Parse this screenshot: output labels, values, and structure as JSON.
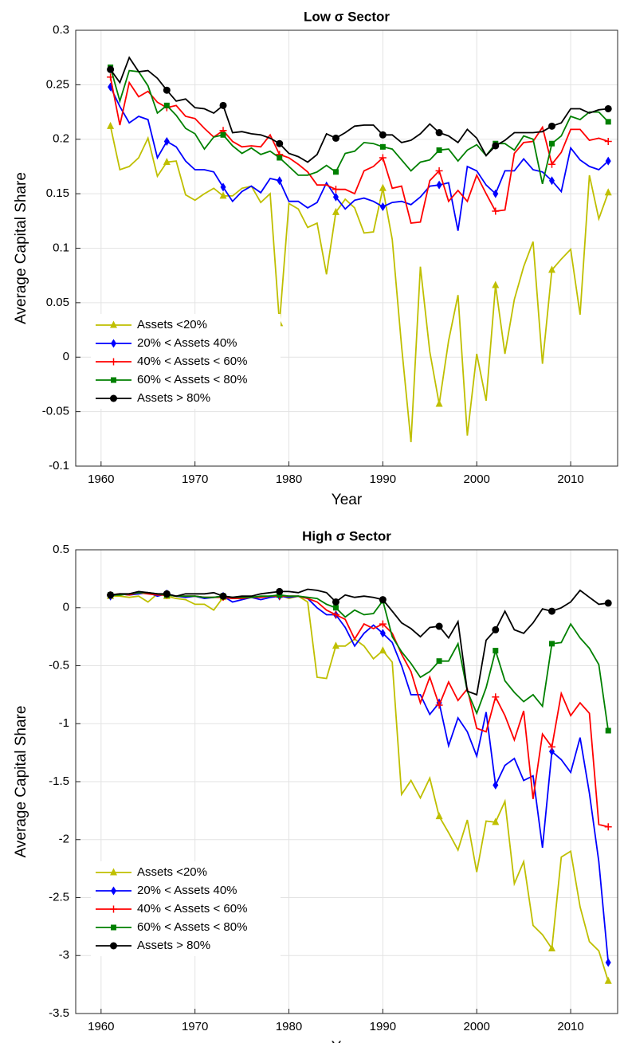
{
  "chart_data": [
    {
      "type": "line",
      "title": "Low σ Sector",
      "xlabel": "Year",
      "ylabel": "Average Capital Share",
      "x": [
        1961,
        1962,
        1963,
        1964,
        1965,
        1966,
        1967,
        1968,
        1969,
        1970,
        1971,
        1972,
        1973,
        1974,
        1975,
        1976,
        1977,
        1978,
        1979,
        1980,
        1981,
        1982,
        1983,
        1984,
        1985,
        1986,
        1987,
        1988,
        1989,
        1990,
        1991,
        1992,
        1993,
        1994,
        1995,
        1996,
        1997,
        1998,
        1999,
        2000,
        2001,
        2002,
        2003,
        2004,
        2005,
        2006,
        2007,
        2008,
        2009,
        2010,
        2011,
        2012,
        2013,
        2014
      ],
      "xlim": [
        1957.3,
        2015
      ],
      "xticks": [
        1960,
        1970,
        1980,
        1990,
        2000,
        2010
      ],
      "ylim": [
        -0.1,
        0.3
      ],
      "yticks": [
        -0.1,
        -0.05,
        0,
        0.05,
        0.1,
        0.15,
        0.2,
        0.25,
        0.3
      ],
      "grid": true,
      "legend": "lower left",
      "series": [
        {
          "name": "Assets <20%",
          "color": "#bfbf00",
          "marker": "triangle",
          "values": [
            0.212,
            0.172,
            0.175,
            0.183,
            0.201,
            0.166,
            0.179,
            0.18,
            0.149,
            0.144,
            0.15,
            0.155,
            0.148,
            0.148,
            0.155,
            0.157,
            0.142,
            0.15,
            0.031,
            0.141,
            0.136,
            0.119,
            0.123,
            0.076,
            0.133,
            0.145,
            0.137,
            0.114,
            0.115,
            0.155,
            0.108,
            0.01,
            -0.078,
            0.083,
            0.005,
            -0.043,
            0.015,
            0.057,
            -0.072,
            0.003,
            -0.04,
            0.066,
            0.003,
            0.053,
            0.083,
            0.106,
            -0.006,
            0.08,
            0.09,
            0.099,
            0.039,
            0.167,
            0.127,
            0.151
          ]
        },
        {
          "name": "20% < Assets 40%",
          "color": "#0000ff",
          "marker": "diamond",
          "values": [
            0.248,
            0.23,
            0.215,
            0.221,
            0.218,
            0.183,
            0.198,
            0.193,
            0.18,
            0.172,
            0.172,
            0.17,
            0.156,
            0.143,
            0.152,
            0.157,
            0.151,
            0.164,
            0.162,
            0.143,
            0.143,
            0.137,
            0.142,
            0.16,
            0.147,
            0.136,
            0.144,
            0.146,
            0.143,
            0.138,
            0.142,
            0.143,
            0.14,
            0.147,
            0.157,
            0.158,
            0.16,
            0.116,
            0.175,
            0.171,
            0.158,
            0.15,
            0.171,
            0.171,
            0.182,
            0.172,
            0.17,
            0.162,
            0.152,
            0.192,
            0.181,
            0.175,
            0.172,
            0.18
          ]
        },
        {
          "name": "40% < Assets < 60%",
          "color": "#ff0000",
          "marker": "plus",
          "values": [
            0.257,
            0.213,
            0.252,
            0.239,
            0.244,
            0.234,
            0.229,
            0.231,
            0.221,
            0.219,
            0.21,
            0.202,
            0.208,
            0.198,
            0.193,
            0.194,
            0.193,
            0.204,
            0.186,
            0.183,
            0.177,
            0.17,
            0.158,
            0.158,
            0.154,
            0.154,
            0.15,
            0.171,
            0.175,
            0.183,
            0.155,
            0.157,
            0.123,
            0.124,
            0.162,
            0.171,
            0.143,
            0.153,
            0.143,
            0.167,
            0.15,
            0.134,
            0.135,
            0.187,
            0.197,
            0.198,
            0.211,
            0.177,
            0.188,
            0.209,
            0.209,
            0.199,
            0.201,
            0.198
          ]
        },
        {
          "name": "60% < Assets < 80%",
          "color": "#008000",
          "marker": "square",
          "values": [
            0.266,
            0.235,
            0.263,
            0.262,
            0.249,
            0.224,
            0.231,
            0.222,
            0.21,
            0.205,
            0.191,
            0.202,
            0.204,
            0.194,
            0.187,
            0.192,
            0.186,
            0.189,
            0.183,
            0.175,
            0.167,
            0.167,
            0.17,
            0.176,
            0.17,
            0.187,
            0.189,
            0.197,
            0.196,
            0.193,
            0.191,
            0.181,
            0.171,
            0.179,
            0.181,
            0.19,
            0.191,
            0.18,
            0.19,
            0.195,
            0.185,
            0.196,
            0.196,
            0.19,
            0.203,
            0.2,
            0.159,
            0.196,
            0.203,
            0.221,
            0.218,
            0.225,
            0.225,
            0.216
          ]
        },
        {
          "name": "Assets > 80%",
          "color": "#000000",
          "marker": "circle",
          "values": [
            0.264,
            0.252,
            0.275,
            0.262,
            0.263,
            0.256,
            0.245,
            0.235,
            0.237,
            0.229,
            0.228,
            0.224,
            0.231,
            0.206,
            0.207,
            0.205,
            0.204,
            0.201,
            0.196,
            0.187,
            0.184,
            0.179,
            0.186,
            0.205,
            0.201,
            0.206,
            0.212,
            0.213,
            0.213,
            0.204,
            0.204,
            0.197,
            0.199,
            0.205,
            0.214,
            0.206,
            0.203,
            0.197,
            0.209,
            0.201,
            0.185,
            0.194,
            0.199,
            0.206,
            0.206,
            0.206,
            0.207,
            0.212,
            0.215,
            0.228,
            0.228,
            0.224,
            0.227,
            0.228
          ]
        }
      ]
    },
    {
      "type": "line",
      "title": "High σ Sector",
      "xlabel": "Year",
      "ylabel": "Average Capital Share",
      "x": [
        1961,
        1962,
        1963,
        1964,
        1965,
        1966,
        1967,
        1968,
        1969,
        1970,
        1971,
        1972,
        1973,
        1974,
        1975,
        1976,
        1977,
        1978,
        1979,
        1980,
        1981,
        1982,
        1983,
        1984,
        1985,
        1986,
        1987,
        1988,
        1989,
        1990,
        1991,
        1992,
        1993,
        1994,
        1995,
        1996,
        1997,
        1998,
        1999,
        2000,
        2001,
        2002,
        2003,
        2004,
        2005,
        2006,
        2007,
        2008,
        2009,
        2010,
        2011,
        2012,
        2013,
        2014
      ],
      "xlim": [
        1957.3,
        2015
      ],
      "xticks": [
        1960,
        1970,
        1980,
        1990,
        2000,
        2010
      ],
      "ylim": [
        -3.5,
        0.5
      ],
      "yticks": [
        -3.5,
        -3,
        -2.5,
        -2,
        -1.5,
        -1,
        -0.5,
        0,
        0.5
      ],
      "grid": true,
      "legend": "lower left",
      "series": [
        {
          "name": "Assets <20%",
          "color": "#bfbf00",
          "marker": "triangle",
          "values": [
            0.1,
            0.1,
            0.09,
            0.1,
            0.05,
            0.12,
            0.1,
            0.08,
            0.07,
            0.03,
            0.03,
            -0.02,
            0.09,
            0.08,
            0.09,
            0.1,
            0.09,
            0.1,
            0.11,
            0.08,
            0.1,
            0.05,
            -0.6,
            -0.61,
            -0.33,
            -0.33,
            -0.27,
            -0.33,
            -0.44,
            -0.37,
            -0.47,
            -1.61,
            -1.49,
            -1.64,
            -1.47,
            -1.8,
            -1.94,
            -2.09,
            -1.83,
            -2.28,
            -1.84,
            -1.85,
            -1.67,
            -2.38,
            -2.19,
            -2.74,
            -2.82,
            -2.94,
            -2.15,
            -2.1,
            -2.58,
            -2.88,
            -2.96,
            -3.22
          ]
        },
        {
          "name": "20% < Assets 40%",
          "color": "#0000ff",
          "marker": "diamond",
          "values": [
            0.1,
            0.12,
            0.11,
            0.12,
            0.13,
            0.1,
            0.12,
            0.1,
            0.09,
            0.1,
            0.08,
            0.09,
            0.1,
            0.05,
            0.07,
            0.09,
            0.07,
            0.09,
            0.1,
            0.09,
            0.1,
            0.08,
            0.0,
            -0.06,
            -0.06,
            -0.17,
            -0.33,
            -0.22,
            -0.15,
            -0.22,
            -0.3,
            -0.5,
            -0.75,
            -0.75,
            -0.92,
            -0.82,
            -1.19,
            -0.95,
            -1.07,
            -1.28,
            -0.9,
            -1.53,
            -1.36,
            -1.3,
            -1.49,
            -1.45,
            -2.07,
            -1.24,
            -1.31,
            -1.42,
            -1.12,
            -1.6,
            -2.19,
            -3.06
          ]
        },
        {
          "name": "40% < Assets < 60%",
          "color": "#ff0000",
          "marker": "plus",
          "values": [
            0.11,
            0.12,
            0.11,
            0.13,
            0.12,
            0.11,
            0.11,
            0.1,
            0.1,
            0.1,
            0.09,
            0.09,
            0.09,
            0.08,
            0.08,
            0.09,
            0.09,
            0.1,
            0.1,
            0.1,
            0.1,
            0.08,
            0.05,
            -0.02,
            -0.06,
            -0.1,
            -0.27,
            -0.14,
            -0.18,
            -0.14,
            -0.22,
            -0.4,
            -0.55,
            -0.82,
            -0.6,
            -0.84,
            -0.64,
            -0.8,
            -0.7,
            -1.04,
            -1.07,
            -0.77,
            -0.93,
            -1.14,
            -0.89,
            -1.65,
            -1.09,
            -1.2,
            -0.74,
            -0.93,
            -0.82,
            -0.91,
            -1.87,
            -1.89
          ]
        },
        {
          "name": "60% < Assets < 80%",
          "color": "#008000",
          "marker": "square",
          "values": [
            0.11,
            0.11,
            0.12,
            0.13,
            0.13,
            0.12,
            0.11,
            0.1,
            0.1,
            0.1,
            0.09,
            0.09,
            0.1,
            0.09,
            0.09,
            0.09,
            0.1,
            0.1,
            0.11,
            0.1,
            0.1,
            0.09,
            0.08,
            0.03,
            0.0,
            -0.08,
            -0.02,
            -0.06,
            -0.05,
            0.06,
            -0.25,
            -0.38,
            -0.48,
            -0.6,
            -0.55,
            -0.46,
            -0.46,
            -0.31,
            -0.72,
            -0.91,
            -0.69,
            -0.37,
            -0.63,
            -0.73,
            -0.81,
            -0.75,
            -0.85,
            -0.31,
            -0.3,
            -0.14,
            -0.26,
            -0.35,
            -0.49,
            -1.06
          ]
        },
        {
          "name": "Assets > 80%",
          "color": "#000000",
          "marker": "circle",
          "values": [
            0.11,
            0.12,
            0.12,
            0.14,
            0.13,
            0.12,
            0.12,
            0.1,
            0.12,
            0.12,
            0.12,
            0.13,
            0.1,
            0.09,
            0.1,
            0.1,
            0.12,
            0.13,
            0.14,
            0.14,
            0.13,
            0.16,
            0.15,
            0.13,
            0.05,
            0.11,
            0.09,
            0.1,
            0.09,
            0.07,
            -0.03,
            -0.13,
            -0.18,
            -0.25,
            -0.17,
            -0.16,
            -0.26,
            -0.12,
            -0.72,
            -0.75,
            -0.28,
            -0.19,
            -0.03,
            -0.19,
            -0.22,
            -0.13,
            -0.01,
            -0.03,
            0.0,
            0.05,
            0.15,
            0.09,
            0.03,
            0.04
          ]
        }
      ]
    }
  ]
}
